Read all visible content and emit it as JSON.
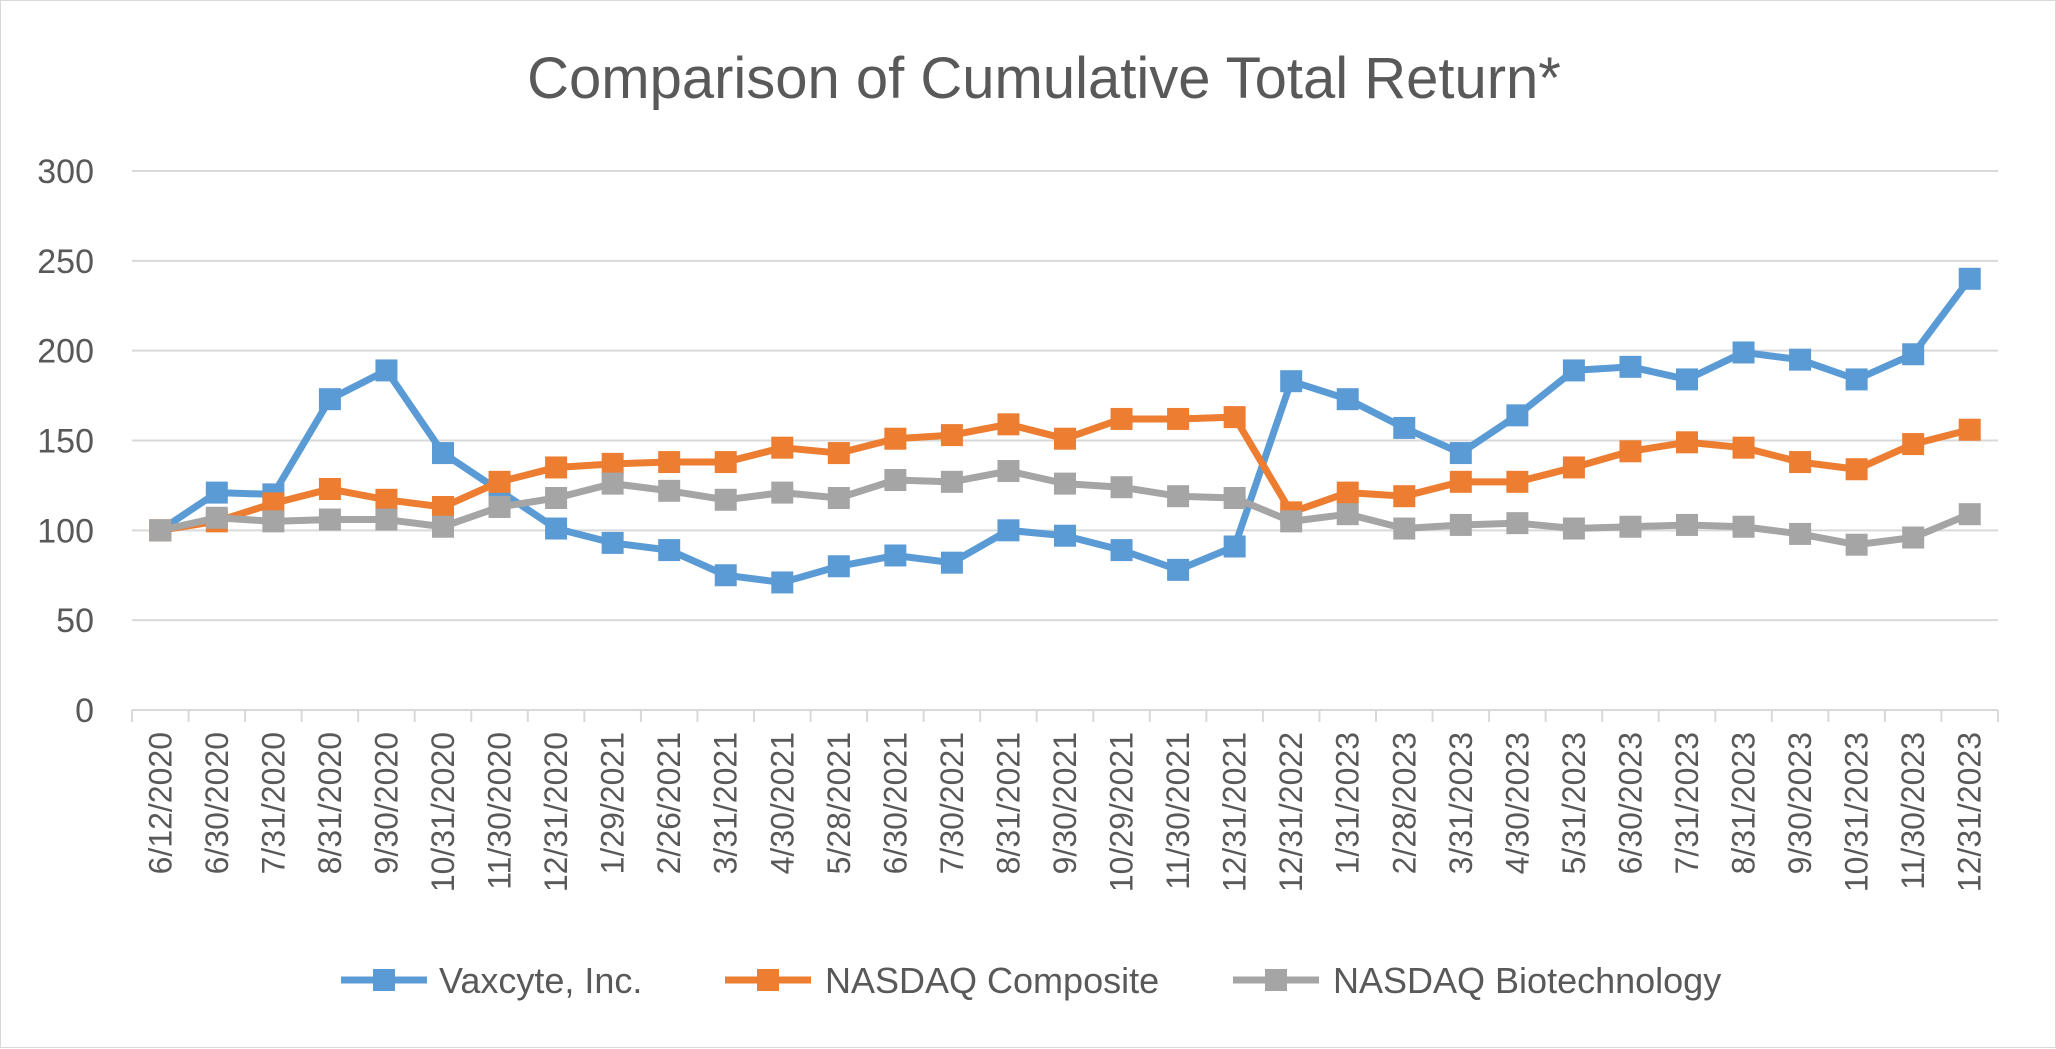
{
  "chart_data": {
    "type": "line",
    "title": "Comparison of Cumulative Total Return*",
    "xlabel": "",
    "ylabel": "",
    "ylim": [
      0,
      300
    ],
    "yticks": [
      0,
      50,
      100,
      150,
      200,
      250,
      300
    ],
    "grid": true,
    "legend_position": "bottom",
    "categories": [
      "6/12/2020",
      "6/30/2020",
      "7/31/2020",
      "8/31/2020",
      "9/30/2020",
      "10/31/2020",
      "11/30/2020",
      "12/31/2020",
      "1/29/2021",
      "2/26/2021",
      "3/31/2021",
      "4/30/2021",
      "5/28/2021",
      "6/30/2021",
      "7/30/2021",
      "8/31/2021",
      "9/30/2021",
      "10/29/2021",
      "11/30/2021",
      "12/31/2021",
      "12/31/2022",
      "1/31/2023",
      "2/28/2023",
      "3/31/2023",
      "4/30/2023",
      "5/31/2023",
      "6/30/2023",
      "7/31/2023",
      "8/31/2023",
      "9/30/2023",
      "10/31/2023",
      "11/30/2023",
      "12/31/2023"
    ],
    "series": [
      {
        "name": "Vaxcyte, Inc.",
        "color": "#5b9bd5",
        "values": [
          100,
          121,
          120,
          173,
          189,
          143,
          122,
          101,
          93,
          89,
          75,
          71,
          80,
          86,
          82,
          100,
          97,
          89,
          78,
          91,
          183,
          173,
          157,
          143,
          164,
          189,
          191,
          184,
          199,
          195,
          184,
          198,
          240
        ]
      },
      {
        "name": "NASDAQ Composite",
        "color": "#ed7d31",
        "values": [
          100,
          105,
          115,
          123,
          117,
          113,
          127,
          135,
          137,
          138,
          138,
          146,
          143,
          151,
          153,
          159,
          151,
          162,
          162,
          163,
          110,
          121,
          119,
          127,
          127,
          135,
          144,
          149,
          146,
          138,
          134,
          148,
          156
        ]
      },
      {
        "name": "NASDAQ Biotechnology",
        "color": "#a5a5a5",
        "values": [
          100,
          107,
          105,
          106,
          106,
          102,
          113,
          118,
          126,
          122,
          117,
          121,
          118,
          128,
          127,
          133,
          126,
          124,
          119,
          118,
          105,
          109,
          101,
          103,
          104,
          101,
          102,
          103,
          102,
          98,
          92,
          96,
          109
        ]
      }
    ]
  }
}
